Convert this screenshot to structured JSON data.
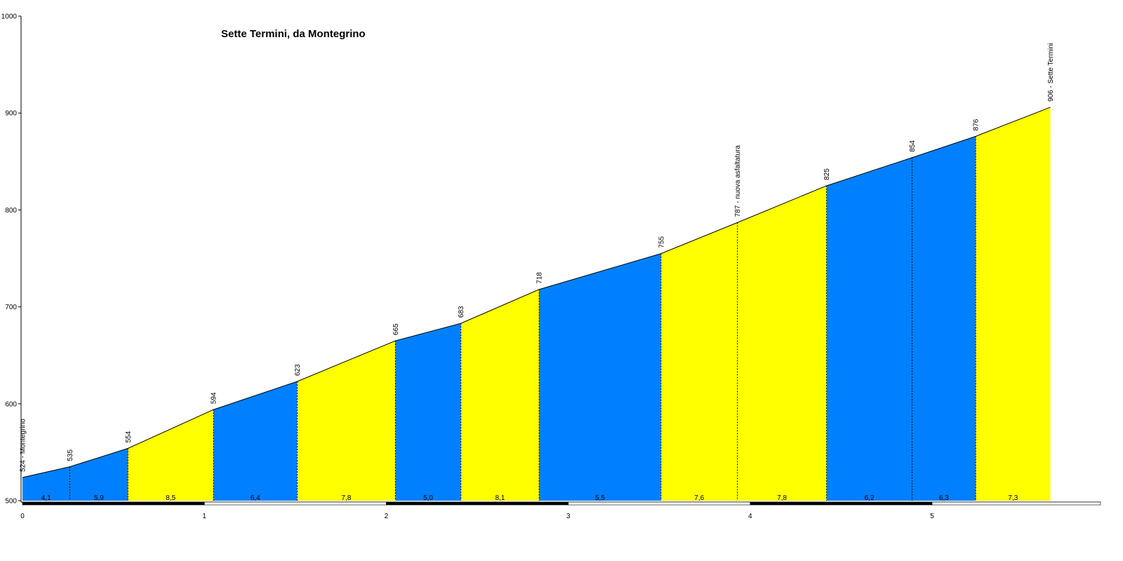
{
  "chart_data": {
    "type": "area",
    "title": "Sette Termini, da Montegrino",
    "xlabel": "",
    "ylabel": "",
    "xlim": [
      0,
      5.9
    ],
    "ylim": [
      500,
      1000
    ],
    "x_ticks": [
      "0",
      "1",
      "2",
      "3",
      "4",
      "5"
    ],
    "y_ticks": [
      "500",
      "600",
      "700",
      "800",
      "900",
      "1000"
    ],
    "points": [
      {
        "x": 0.0,
        "y": 524,
        "label": "524 - Montegrino"
      },
      {
        "x": 0.26,
        "y": 535,
        "label": "535"
      },
      {
        "x": 0.58,
        "y": 554,
        "label": "554"
      },
      {
        "x": 1.05,
        "y": 594,
        "label": "594"
      },
      {
        "x": 1.51,
        "y": 623,
        "label": "623"
      },
      {
        "x": 2.05,
        "y": 665,
        "label": "665"
      },
      {
        "x": 2.41,
        "y": 683,
        "label": "683"
      },
      {
        "x": 2.84,
        "y": 718,
        "label": "718"
      },
      {
        "x": 3.51,
        "y": 755,
        "label": "755"
      },
      {
        "x": 3.93,
        "y": 787,
        "label": "787 - nuova asfaltatura"
      },
      {
        "x": 4.42,
        "y": 825,
        "label": "825"
      },
      {
        "x": 4.89,
        "y": 854,
        "label": "854"
      },
      {
        "x": 5.24,
        "y": 876,
        "label": "876"
      },
      {
        "x": 5.65,
        "y": 906,
        "label": "906 - Sette Termini"
      }
    ],
    "segments": [
      {
        "gradient": "4,1",
        "fill": "#0080ff"
      },
      {
        "gradient": "5,9",
        "fill": "#0080ff"
      },
      {
        "gradient": "8,5",
        "fill": "#ffff00"
      },
      {
        "gradient": "6,4",
        "fill": "#0080ff"
      },
      {
        "gradient": "7,8",
        "fill": "#ffff00"
      },
      {
        "gradient": "5,0",
        "fill": "#0080ff"
      },
      {
        "gradient": "8,1",
        "fill": "#ffff00"
      },
      {
        "gradient": "5,5",
        "fill": "#0080ff"
      },
      {
        "gradient": "7,6",
        "fill": "#ffff00"
      },
      {
        "gradient": "7,8",
        "fill": "#ffff00"
      },
      {
        "gradient": "6,2",
        "fill": "#0080ff"
      },
      {
        "gradient": "6,3",
        "fill": "#0080ff"
      },
      {
        "gradient": "7,3",
        "fill": "#ffff00"
      }
    ],
    "colors": {
      "low": "#0080ff",
      "high": "#ffff00",
      "axis": "#000000"
    },
    "grid": false
  }
}
